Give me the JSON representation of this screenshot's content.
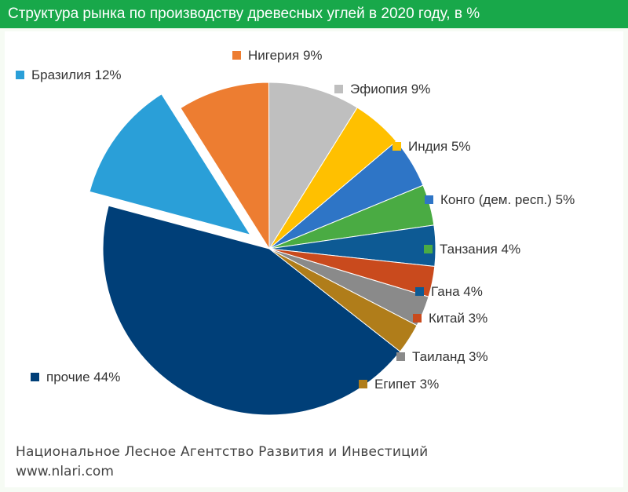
{
  "chart_data": {
    "type": "pie",
    "title": "Структура рынка по производству древесных углей в 2020 году, в %",
    "slices": [
      {
        "label": "Бразилия",
        "value": 12,
        "value_label": "12%",
        "color": "#2a9fd8",
        "exploded": true
      },
      {
        "label": "Нигерия",
        "value": 9,
        "value_label": "9%",
        "color": "#ed7d31"
      },
      {
        "label": "Эфиопия",
        "value": 9,
        "value_label": "9%",
        "color": "#bfbfbf"
      },
      {
        "label": "Индия",
        "value": 5,
        "value_label": "5%",
        "color": "#ffc000"
      },
      {
        "label": "Конго (дем. респ.)",
        "value": 5,
        "value_label": "5%",
        "color": "#2e75c6"
      },
      {
        "label": "Танзания",
        "value": 4,
        "value_label": "4%",
        "color": "#4aab43"
      },
      {
        "label": "Гана",
        "value": 4,
        "value_label": "4%",
        "color": "#0d5a94"
      },
      {
        "label": "Китай",
        "value": 3,
        "value_label": "3%",
        "color": "#c94a1d"
      },
      {
        "label": "Таиланд",
        "value": 3,
        "value_label": "3%",
        "color": "#8a8a8a"
      },
      {
        "label": "Египет",
        "value": 3,
        "value_label": "3%",
        "color": "#b07d1a"
      },
      {
        "label": "прочие",
        "value": 44,
        "value_label": "44%",
        "color": "#003f78"
      }
    ]
  },
  "footer": {
    "organization": "Национальное Лесное Агентство Развития и Инвестиций",
    "website": "www.nlari.com"
  }
}
